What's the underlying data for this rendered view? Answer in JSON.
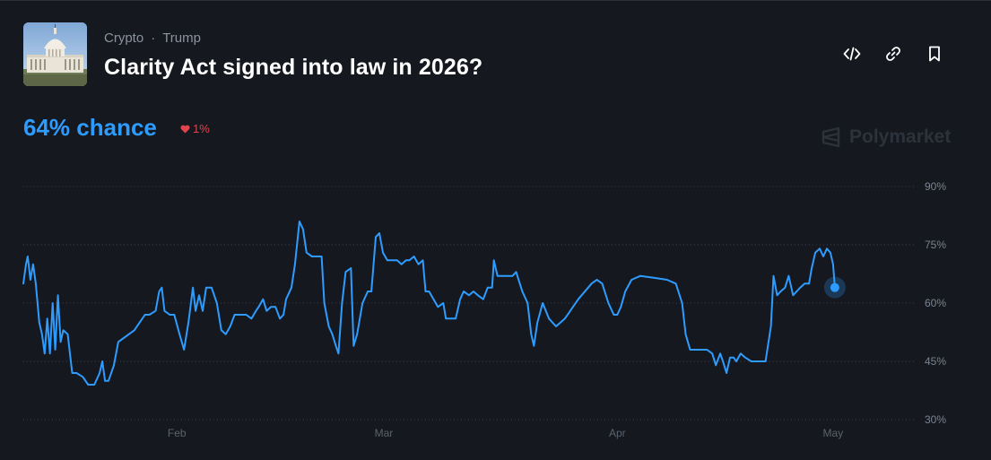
{
  "market": {
    "categories": [
      "Crypto",
      "Trump"
    ],
    "separator": "·",
    "title": "Clarity Act signed into law in 2026?",
    "chance_text": "64% chance",
    "delta_text": "1%",
    "brand": "Polymarket"
  },
  "actions": [
    "embed-icon",
    "link-icon",
    "bookmark-icon"
  ],
  "colors": {
    "line": "#2e9cff",
    "down": "#e0444d",
    "background": "#15191f"
  },
  "chart_data": {
    "type": "line",
    "x_tick_labels": [
      "Feb",
      "Mar",
      "Apr",
      "May"
    ],
    "y_tick_labels": [
      "90%",
      "75%",
      "60%",
      "45%",
      "30%"
    ],
    "yticks": [
      90,
      75,
      60,
      45,
      30
    ],
    "ylim": [
      30,
      90
    ],
    "x_range": [
      0,
      100
    ],
    "x_tick_positions": [
      17.3,
      40.6,
      66.9,
      91.2
    ],
    "grid": true,
    "current_value": 64,
    "series": [
      {
        "values": [
          [
            0,
            65
          ],
          [
            0.3,
            70
          ],
          [
            0.5,
            72
          ],
          [
            0.8,
            66
          ],
          [
            1.1,
            70
          ],
          [
            1.4,
            65
          ],
          [
            1.8,
            55
          ],
          [
            2.1,
            52
          ],
          [
            2.4,
            47
          ],
          [
            2.7,
            56
          ],
          [
            3,
            47
          ],
          [
            3.3,
            60
          ],
          [
            3.6,
            48
          ],
          [
            3.9,
            62
          ],
          [
            4.2,
            50
          ],
          [
            4.5,
            53
          ],
          [
            5,
            52
          ],
          [
            5.5,
            42
          ],
          [
            6,
            42
          ],
          [
            6.7,
            41
          ],
          [
            7.3,
            39
          ],
          [
            8,
            39
          ],
          [
            8.6,
            42
          ],
          [
            8.9,
            45
          ],
          [
            9.2,
            40
          ],
          [
            9.6,
            40
          ],
          [
            10.2,
            44
          ],
          [
            10.7,
            50
          ],
          [
            11.3,
            51
          ],
          [
            11.9,
            52
          ],
          [
            12.5,
            53
          ],
          [
            13.1,
            55
          ],
          [
            13.7,
            57
          ],
          [
            14.2,
            57
          ],
          [
            14.9,
            58
          ],
          [
            15.3,
            63
          ],
          [
            15.6,
            64
          ],
          [
            15.9,
            58
          ],
          [
            16.5,
            57
          ],
          [
            17,
            57
          ],
          [
            17.6,
            52
          ],
          [
            18.1,
            48
          ],
          [
            18.6,
            55
          ],
          [
            19.1,
            64
          ],
          [
            19.4,
            58
          ],
          [
            19.8,
            62
          ],
          [
            20.2,
            58
          ],
          [
            20.6,
            64
          ],
          [
            21.2,
            64
          ],
          [
            21.8,
            60
          ],
          [
            22.3,
            53
          ],
          [
            22.8,
            52
          ],
          [
            23.3,
            54
          ],
          [
            23.8,
            57
          ],
          [
            24.5,
            57
          ],
          [
            25.1,
            57
          ],
          [
            25.7,
            56
          ],
          [
            26.2,
            58
          ],
          [
            26.5,
            59
          ],
          [
            27,
            61
          ],
          [
            27.4,
            58
          ],
          [
            27.9,
            59
          ],
          [
            28.4,
            59
          ],
          [
            28.9,
            56
          ],
          [
            29.3,
            57
          ],
          [
            29.6,
            61
          ],
          [
            30.2,
            64
          ],
          [
            30.6,
            70
          ],
          [
            31.1,
            81
          ],
          [
            31.5,
            79
          ],
          [
            31.9,
            73
          ],
          [
            32.5,
            72
          ],
          [
            33,
            72
          ],
          [
            33.6,
            72
          ],
          [
            33.9,
            60
          ],
          [
            34.4,
            54
          ],
          [
            34.8,
            52
          ],
          [
            35.2,
            49
          ],
          [
            35.5,
            47
          ],
          [
            35.9,
            60
          ],
          [
            36.3,
            68
          ],
          [
            36.9,
            69
          ],
          [
            37.2,
            49
          ],
          [
            37.6,
            52
          ],
          [
            38.2,
            60
          ],
          [
            38.8,
            63
          ],
          [
            39.2,
            63
          ],
          [
            39.7,
            77
          ],
          [
            40.1,
            78
          ],
          [
            40.5,
            73
          ],
          [
            41,
            71
          ],
          [
            41.5,
            71
          ],
          [
            42.1,
            71
          ],
          [
            42.6,
            70
          ],
          [
            43.1,
            71
          ],
          [
            43.5,
            71
          ],
          [
            44,
            72
          ],
          [
            44.5,
            70
          ],
          [
            45,
            71
          ],
          [
            45.3,
            63
          ],
          [
            45.7,
            63
          ],
          [
            46.2,
            61
          ],
          [
            46.7,
            59
          ],
          [
            47.3,
            60
          ],
          [
            47.6,
            56
          ],
          [
            48.1,
            56
          ],
          [
            48.7,
            56
          ],
          [
            49.2,
            61
          ],
          [
            49.6,
            63
          ],
          [
            50.2,
            62
          ],
          [
            50.7,
            63
          ],
          [
            51.2,
            62
          ],
          [
            51.8,
            61
          ],
          [
            52.3,
            64
          ],
          [
            52.8,
            64
          ],
          [
            53,
            71
          ],
          [
            53.4,
            67
          ],
          [
            54,
            67
          ],
          [
            54.5,
            67
          ],
          [
            55.1,
            67
          ],
          [
            55.5,
            68
          ],
          [
            56.2,
            63
          ],
          [
            56.8,
            60
          ],
          [
            57.2,
            52
          ],
          [
            57.5,
            49
          ],
          [
            57.9,
            55
          ],
          [
            58.5,
            60
          ],
          [
            59.2,
            56
          ],
          [
            60,
            54
          ],
          [
            61,
            56
          ],
          [
            62.5,
            61
          ],
          [
            64,
            65
          ],
          [
            64.6,
            66
          ],
          [
            65.2,
            65
          ],
          [
            65.9,
            60
          ],
          [
            66.5,
            57
          ],
          [
            66.9,
            57
          ],
          [
            67.3,
            59
          ],
          [
            67.8,
            63
          ],
          [
            68.5,
            66
          ],
          [
            69.5,
            67
          ],
          [
            71,
            66.5
          ],
          [
            72.5,
            66
          ],
          [
            73.5,
            65
          ],
          [
            74.2,
            60
          ],
          [
            74.6,
            52
          ],
          [
            75.1,
            48
          ],
          [
            76,
            48
          ],
          [
            77,
            48
          ],
          [
            77.6,
            47
          ],
          [
            78,
            44
          ],
          [
            78.5,
            47
          ],
          [
            78.8,
            45
          ],
          [
            79.2,
            42
          ],
          [
            79.6,
            46
          ],
          [
            80,
            46
          ],
          [
            80.3,
            45
          ],
          [
            80.8,
            47
          ],
          [
            81.3,
            46
          ],
          [
            82,
            45
          ],
          [
            82.6,
            45
          ],
          [
            83.1,
            45
          ],
          [
            83.6,
            45
          ],
          [
            84.2,
            54
          ],
          [
            84.5,
            67
          ],
          [
            84.9,
            62
          ],
          [
            85.3,
            63
          ],
          [
            85.8,
            64
          ],
          [
            86.2,
            67
          ],
          [
            86.7,
            62
          ],
          [
            87.1,
            63
          ],
          [
            87.5,
            64
          ],
          [
            88,
            65
          ],
          [
            88.5,
            65
          ],
          [
            88.8,
            69
          ],
          [
            89.2,
            73
          ],
          [
            89.7,
            74
          ],
          [
            90.1,
            72
          ],
          [
            90.5,
            74
          ],
          [
            90.9,
            73
          ],
          [
            91.2,
            70
          ],
          [
            91.4,
            64
          ]
        ]
      }
    ]
  }
}
